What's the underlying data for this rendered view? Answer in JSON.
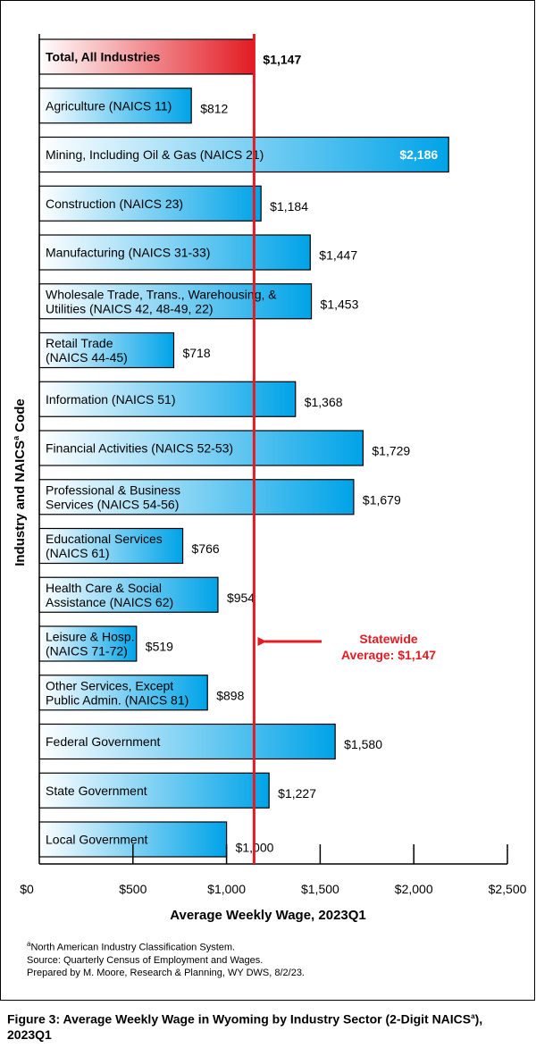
{
  "chart_data": {
    "type": "bar",
    "orientation": "horizontal",
    "xlabel": "Average Weekly Wage, 2023Q1",
    "ylabel_main": "Industry and NAICS",
    "ylabel_sup": "a",
    "ylabel_tail": " Code",
    "xlim": [
      0,
      2500
    ],
    "xticks": [
      "$0",
      "$500",
      "$1,000",
      "$1,500",
      "$2,000",
      "$2,500"
    ],
    "xtick_values": [
      0,
      500,
      1000,
      1500,
      2000,
      2500
    ],
    "reference_line": {
      "value": 1147,
      "label_line1": "Statewide",
      "label_line2": "Average: $1,147",
      "color": "#e31b23"
    },
    "highlight_color": "#e31b23",
    "bar_color": "#00a3e8",
    "categories": [
      [
        "Total, All Industries"
      ],
      [
        "Agriculture (NAICS 11)"
      ],
      [
        "Mining, Including Oil & Gas (NAICS 21)"
      ],
      [
        "Construction (NAICS 23)"
      ],
      [
        "Manufacturing (NAICS 31-33)"
      ],
      [
        "Wholesale Trade, Trans., Warehousing, &",
        "Utilities (NAICS 42, 48-49, 22)"
      ],
      [
        "Retail Trade",
        "(NAICS 44-45)"
      ],
      [
        "Information (NAICS 51)"
      ],
      [
        "Financial Activities (NAICS 52-53)"
      ],
      [
        "Professional & Business",
        "Services (NAICS 54-56)"
      ],
      [
        "Educational Services",
        "(NAICS 61)"
      ],
      [
        "Health Care & Social",
        "Assistance (NAICS 62)"
      ],
      [
        "Leisure & Hosp.",
        "(NAICS 71-72)"
      ],
      [
        "Other Services, Except",
        "Public Admin. (NAICS 81)"
      ],
      [
        "Federal Government"
      ],
      [
        "State Government"
      ],
      [
        "Local Government"
      ]
    ],
    "values": [
      1147,
      812,
      2186,
      1184,
      1447,
      1453,
      718,
      1368,
      1729,
      1679,
      766,
      954,
      519,
      898,
      1580,
      1227,
      1000
    ],
    "value_labels": [
      "$1,147",
      "$812",
      "$2,186",
      "$1,184",
      "$1,447",
      "$1,453",
      "$718",
      "$1,368",
      "$1,729",
      "$1,679",
      "$766",
      "$954",
      "$519",
      "$898",
      "$1,580",
      "$1,227",
      "$1,000"
    ]
  },
  "notes": {
    "line1_sup": "a",
    "line1": "North American Industry Classification System.",
    "line2": "Source: Quarterly Census of Employment and Wages.",
    "line3": "Prepared by M. Moore, Research & Planning, WY DWS, 8/2/23."
  },
  "caption": {
    "part1": "Figure 3: Average Weekly Wage in Wyoming by Industry Sector (2-Digit NAICS",
    "sup": "a",
    "part2": "), 2023Q1"
  }
}
